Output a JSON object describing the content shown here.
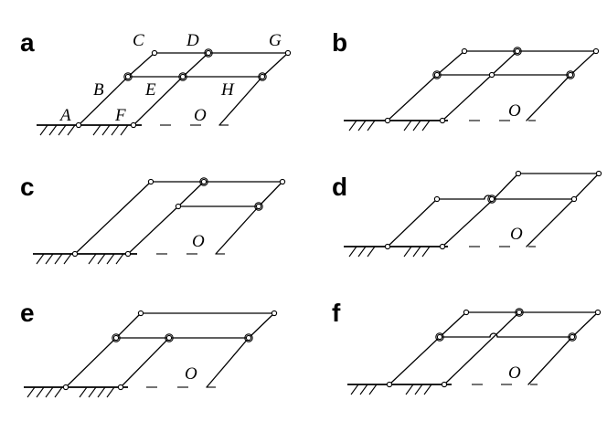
{
  "panels": [
    {
      "label": "a",
      "origin_label": "O"
    },
    {
      "label": "b",
      "origin_label": "O"
    },
    {
      "label": "c",
      "origin_label": "O"
    },
    {
      "label": "d",
      "origin_label": "O"
    },
    {
      "label": "e",
      "origin_label": "O"
    },
    {
      "label": "f",
      "origin_label": "O"
    }
  ],
  "point_labels": {
    "A": "A",
    "B": "B",
    "C": "C",
    "D": "D",
    "E": "E",
    "F": "F",
    "G": "G",
    "H": "H"
  }
}
